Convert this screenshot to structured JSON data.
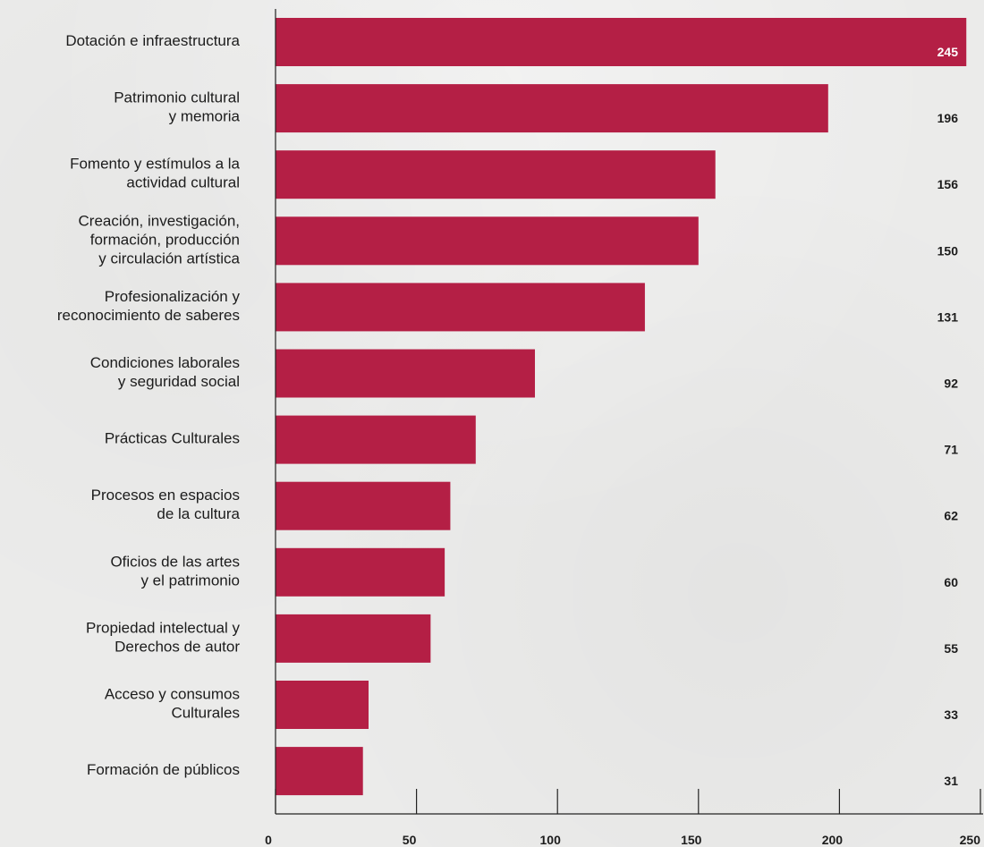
{
  "chart_data": {
    "type": "bar",
    "orientation": "horizontal",
    "categories": [
      [
        "Dotación e infraestructura"
      ],
      [
        "Patrimonio cultural",
        "y memoria"
      ],
      [
        "Fomento y estímulos a la",
        "actividad cultural"
      ],
      [
        "Creación, investigación,",
        "formación, producción",
        "y circulación artística"
      ],
      [
        "Profesionalización y",
        "reconocimiento de saberes"
      ],
      [
        "Condiciones laborales",
        "y seguridad social"
      ],
      [
        "Prácticas Culturales"
      ],
      [
        "Procesos en espacios",
        "de la cultura"
      ],
      [
        "Oficios de las artes",
        "y el patrimonio"
      ],
      [
        "Propiedad intelectual y",
        "Derechos de autor"
      ],
      [
        "Acceso y consumos",
        "Culturales"
      ],
      [
        "Formación de públicos"
      ]
    ],
    "values": [
      245,
      196,
      156,
      150,
      131,
      92,
      71,
      62,
      60,
      55,
      33,
      31
    ],
    "value_labels": [
      "245",
      "196",
      "156",
      "150",
      "131",
      "92",
      "71",
      "62",
      "60",
      "55",
      "33",
      "31"
    ],
    "xlim": [
      0,
      250
    ],
    "x_ticks": [
      0,
      50,
      100,
      150,
      200,
      250
    ],
    "x_tick_labels": [
      "0",
      "50",
      "100",
      "150",
      "200",
      "250"
    ],
    "grid": false,
    "legend": "none",
    "colors": {
      "bar": "#b41f45",
      "text": "#1c1c1c",
      "inside_label": "#ffffff",
      "background": "#ebebea"
    }
  }
}
